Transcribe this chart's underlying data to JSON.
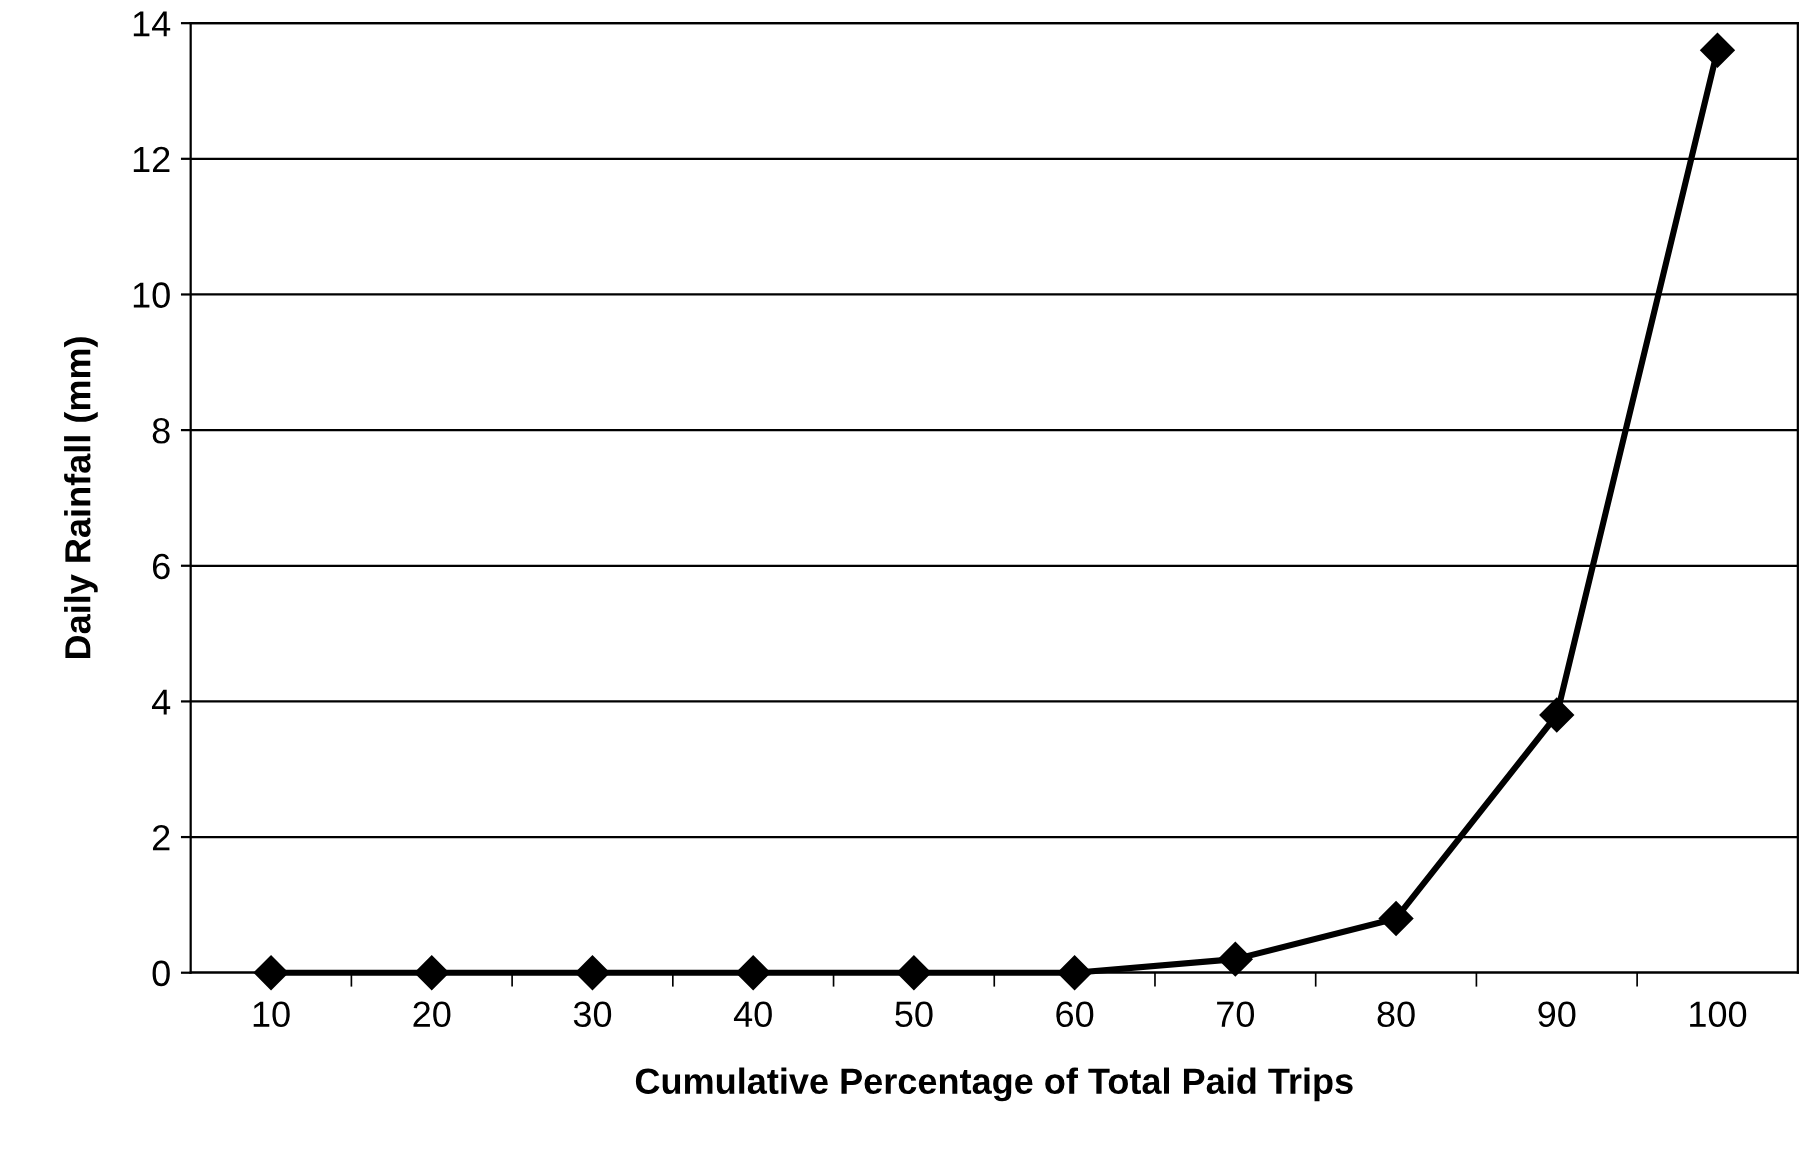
{
  "chart_data": {
    "type": "line",
    "xlabel": "Cumulative Percentage of Total Paid Trips",
    "ylabel": "Daily Rainfall (mm)",
    "categories": [
      "10",
      "20",
      "30",
      "40",
      "50",
      "60",
      "70",
      "80",
      "90",
      "100"
    ],
    "series": [
      {
        "color": "#000000",
        "values": [
          0,
          0,
          0,
          0,
          0,
          0,
          0.2,
          0.8,
          3.8,
          13.6
        ]
      }
    ],
    "ylim": [
      0,
      14
    ],
    "yticks": [
      0,
      2,
      4,
      6,
      8,
      10,
      12,
      14
    ],
    "grid": "y",
    "marker": "diamond",
    "line_style": "solid"
  }
}
